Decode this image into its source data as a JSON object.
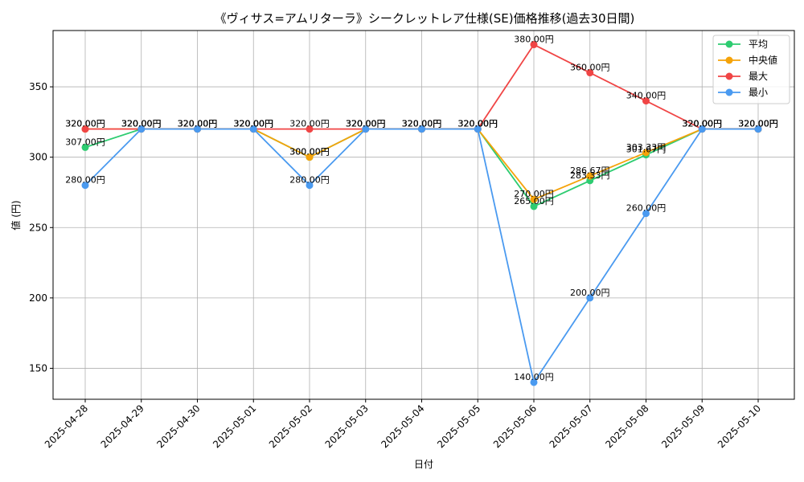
{
  "chart_data": {
    "type": "line",
    "title": "《ヴィサス=アムリターラ》シークレットレア仕様(SE)価格推移(過去30日間)",
    "xlabel": "日付",
    "ylabel": "値 (円)",
    "categories": [
      "2025-04-28",
      "2025-04-29",
      "2025-04-30",
      "2025-05-01",
      "2025-05-02",
      "2025-05-03",
      "2025-05-04",
      "2025-05-05",
      "2025-05-06",
      "2025-05-07",
      "2025-05-08",
      "2025-05-09",
      "2025-05-10"
    ],
    "ylim": [
      128,
      390
    ],
    "yticks": [
      150,
      200,
      250,
      300,
      350
    ],
    "grid": true,
    "legend_position": "top-right",
    "series": [
      {
        "name": "平均",
        "color": "#2ecc71",
        "values": [
          307,
          320,
          320,
          320,
          300,
          320,
          320,
          320,
          265,
          283.33,
          301.67,
          320,
          320
        ],
        "labels": [
          "307.00円",
          "320.00円",
          "320.00円",
          "320.00円",
          "300.00円",
          "320.00円",
          "320.00円",
          "320.00円",
          "265.00円",
          "283.33円",
          "301.67円",
          "320.00円",
          "320.00円"
        ]
      },
      {
        "name": "中央値",
        "color": "#f5a30a",
        "values": [
          320,
          320,
          320,
          320,
          300,
          320,
          320,
          320,
          270,
          286.67,
          303.33,
          320,
          320
        ],
        "labels": [
          "320.00円",
          "320.00円",
          "320.00円",
          "320.00円",
          "300.00円",
          "320.00円",
          "320.00円",
          "320.00円",
          "270.00円",
          "286.67円",
          "303.33円",
          "320.00円",
          "320.00円"
        ]
      },
      {
        "name": "最大",
        "color": "#f04545",
        "values": [
          320,
          320,
          320,
          320,
          320,
          320,
          320,
          320,
          380,
          360,
          340,
          320,
          320
        ],
        "labels": [
          "320.00円",
          "320.00円",
          "320.00円",
          "320.00円",
          "320.00円",
          "320.00円",
          "320.00円",
          "320.00円",
          "380.00円",
          "360.00円",
          "340.00円",
          "320.00円",
          "320.00円"
        ]
      },
      {
        "name": "最小",
        "color": "#4a9af0",
        "values": [
          280,
          320,
          320,
          320,
          280,
          320,
          320,
          320,
          140,
          200,
          260,
          320,
          320
        ],
        "labels": [
          "280.00円",
          "320.00円",
          "320.00円",
          "320.00円",
          "280.00円",
          "320.00円",
          "320.00円",
          "320.00円",
          "140.00円",
          "200.00円",
          "260.00円",
          "320.00円",
          "320.00円"
        ]
      }
    ]
  }
}
